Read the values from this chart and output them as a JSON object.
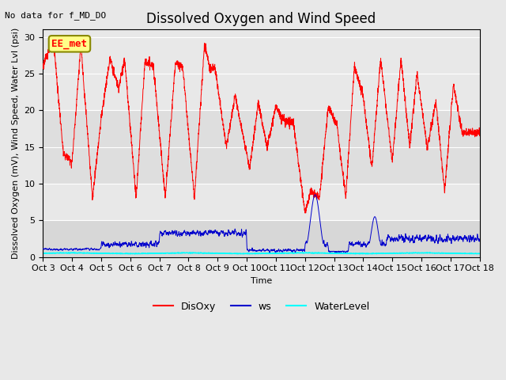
{
  "title": "Dissolved Oxygen and Wind Speed",
  "no_data_text": "No data for f_MD_DO",
  "station_label": "EE_met",
  "xlabel": "Time",
  "ylabel": "Dissolved Oxygen (mV), Wind Speed, Water Lvl (psi)",
  "ylim": [
    0,
    31
  ],
  "yticks": [
    0,
    5,
    10,
    15,
    20,
    25,
    30
  ],
  "xtick_labels": [
    "Oct 3",
    "Oct 4",
    "Oct 5",
    "Oct 6",
    "Oct 7",
    "Oct 8",
    "Oct 9",
    "Oct 10",
    "Oct 11",
    "Oct 12",
    "Oct 13",
    "Oct 14",
    "Oct 15",
    "Oct 16",
    "Oct 17",
    "Oct 18"
  ],
  "disoxy_color": "#ff0000",
  "ws_color": "#0000cc",
  "waterlevel_color": "#00ffff",
  "legend_labels": [
    "DisOxy",
    "ws",
    "WaterLevel"
  ],
  "bg_upper_color": "#e8e8e8",
  "bg_lower_color": "#c8c8c8",
  "title_fontsize": 12,
  "label_fontsize": 8,
  "tick_fontsize": 8
}
